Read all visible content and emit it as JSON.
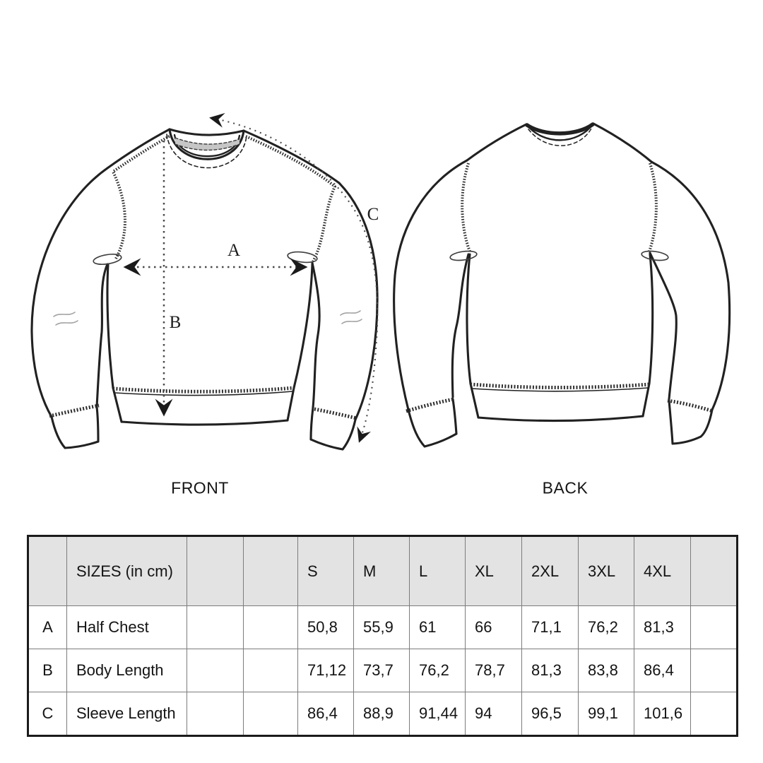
{
  "diagram": {
    "front": {
      "label": "FRONT"
    },
    "back": {
      "label": "BACK"
    },
    "annotations": {
      "a": "A",
      "b": "B",
      "c": "C"
    },
    "colors": {
      "line": "#212121",
      "stitch": "#2e2e2e",
      "collar_tape": "#c6c6c6",
      "measure_line": "#4a4a4a",
      "arrow": "#1a1a1a",
      "detail": "#9a9a9a"
    }
  },
  "size_table": {
    "unit_label": "SIZES (in cm)",
    "header": [
      "",
      "SIZES (in cm)",
      "",
      "",
      "S",
      "M",
      "L",
      "XL",
      "2XL",
      "3XL",
      "4XL",
      ""
    ],
    "rows": [
      [
        "A",
        "Half Chest",
        "",
        "",
        "50,8",
        "55,9",
        "61",
        "66",
        "71,1",
        "76,2",
        "81,3",
        ""
      ],
      [
        "B",
        "Body Length",
        "",
        "",
        "71,12",
        "73,7",
        "76,2",
        "78,7",
        "81,3",
        "83,8",
        "86,4",
        ""
      ],
      [
        "C",
        "Sleeve Length",
        "",
        "",
        "86,4",
        "88,9",
        "91,44",
        "94",
        "96,5",
        "99,1",
        "101,6",
        ""
      ]
    ],
    "measurements": [
      {
        "letter": "A",
        "name": "Half Chest"
      },
      {
        "letter": "B",
        "name": "Body Length"
      },
      {
        "letter": "C",
        "name": "Sleeve Length"
      }
    ],
    "colors": {
      "header_bg": "#e3e3e3",
      "grid": "#7c7c7c",
      "border": "#1b1b1b"
    }
  }
}
